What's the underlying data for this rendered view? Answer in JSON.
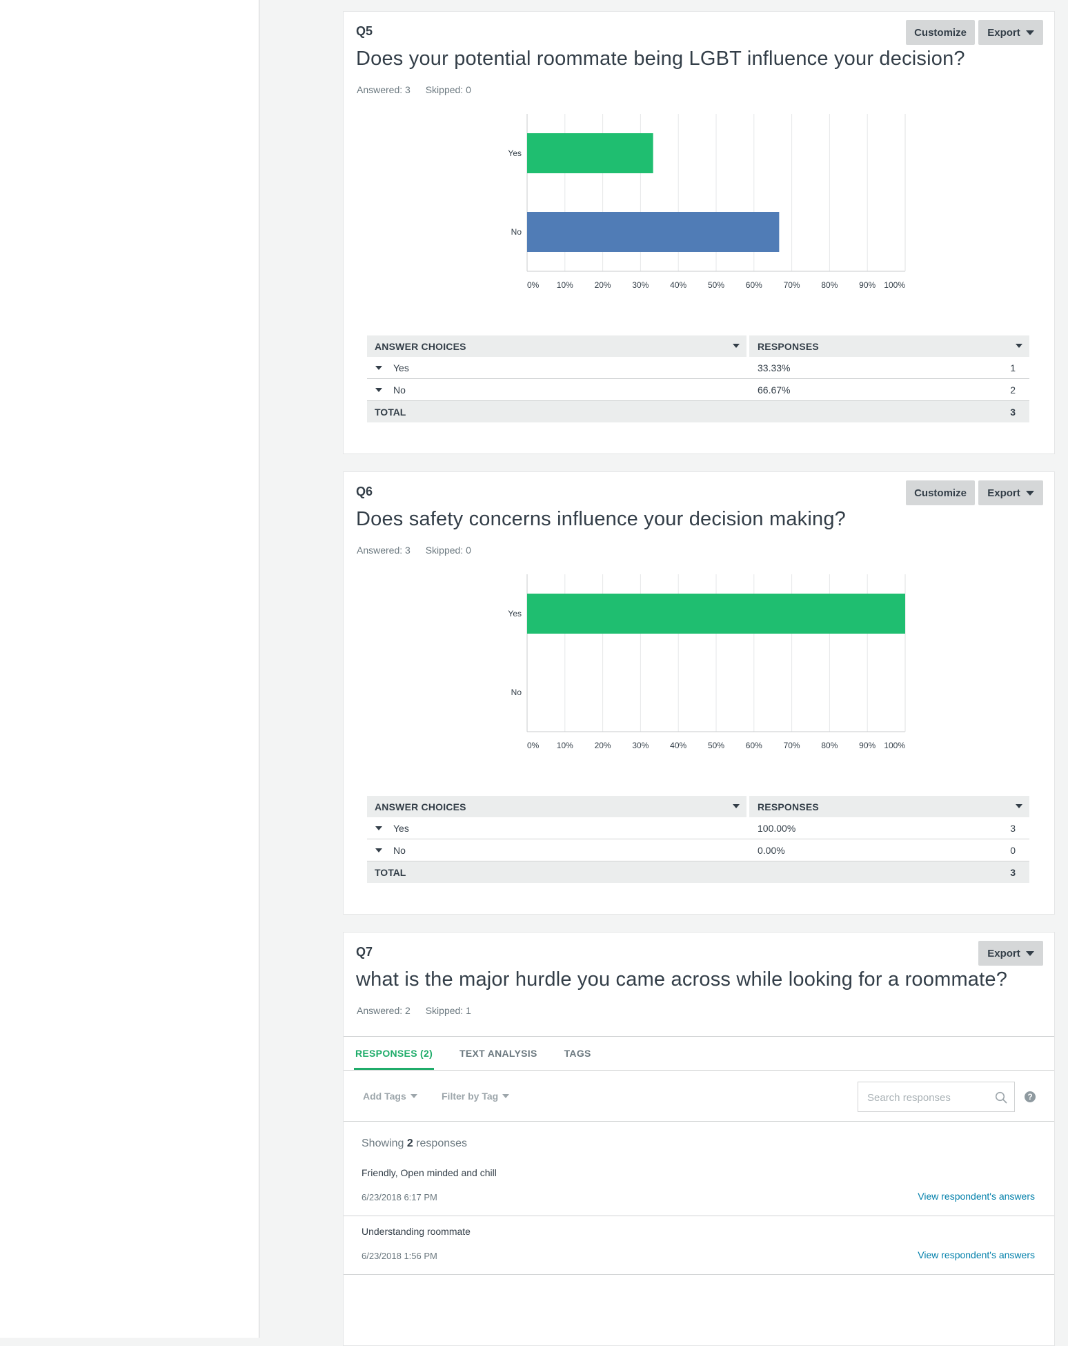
{
  "questions": [
    {
      "num": "Q5",
      "title": "Does your potential roommate being LGBT influence your decision?",
      "answered": "Answered: 3",
      "skipped": "Skipped: 0",
      "customize_label": "Customize",
      "export_label": "Export",
      "table": {
        "col1": "ANSWER CHOICES",
        "col2": "RESPONSES",
        "rows": [
          {
            "choice": "Yes",
            "percent": "33.33%",
            "count": "1"
          },
          {
            "choice": "No",
            "percent": "66.67%",
            "count": "2"
          }
        ],
        "total_label": "TOTAL",
        "total": "3"
      }
    },
    {
      "num": "Q6",
      "title": "Does safety concerns influence your decision making?",
      "answered": "Answered: 3",
      "skipped": "Skipped: 0",
      "customize_label": "Customize",
      "export_label": "Export",
      "table": {
        "col1": "ANSWER CHOICES",
        "col2": "RESPONSES",
        "rows": [
          {
            "choice": "Yes",
            "percent": "100.00%",
            "count": "3"
          },
          {
            "choice": "No",
            "percent": "0.00%",
            "count": "0"
          }
        ],
        "total_label": "TOTAL",
        "total": "3"
      }
    },
    {
      "num": "Q7",
      "title": "what is the major hurdle you came across while looking for a roommate?",
      "answered": "Answered: 2",
      "skipped": "Skipped: 1",
      "export_label": "Export",
      "tabs": [
        "RESPONSES (2)",
        "TEXT ANALYSIS",
        "TAGS"
      ],
      "add_tags": "Add Tags",
      "filter_by_tag": "Filter by Tag",
      "search_placeholder": "Search responses",
      "help": "?",
      "showing_prefix": "Showing",
      "showing_count": "2",
      "showing_suffix": "responses",
      "responses": [
        {
          "text": "Friendly, Open minded and chill",
          "date": "6/23/2018 6:17 PM",
          "link": "View respondent's answers"
        },
        {
          "text": "Understanding roommate",
          "date": "6/23/2018 1:56 PM",
          "link": "View respondent's answers"
        }
      ]
    }
  ],
  "chart_data": [
    {
      "type": "bar",
      "orientation": "horizontal",
      "categories": [
        "Yes",
        "No"
      ],
      "values": [
        33.33,
        66.67
      ],
      "colors": [
        "#1fbe70",
        "#507cb6"
      ],
      "xticks": [
        "0%",
        "10%",
        "20%",
        "30%",
        "40%",
        "50%",
        "60%",
        "70%",
        "80%",
        "90%",
        "100%"
      ],
      "xlim": [
        0,
        100
      ],
      "grid": true
    },
    {
      "type": "bar",
      "orientation": "horizontal",
      "categories": [
        "Yes",
        "No"
      ],
      "values": [
        100,
        0
      ],
      "colors": [
        "#1fbe70",
        "#507cb6"
      ],
      "xticks": [
        "0%",
        "10%",
        "20%",
        "30%",
        "40%",
        "50%",
        "60%",
        "70%",
        "80%",
        "90%",
        "100%"
      ],
      "xlim": [
        0,
        100
      ],
      "grid": true
    }
  ],
  "colors": {
    "accent_green": "#1fac6a",
    "link_blue": "#007faa"
  },
  "icons": {
    "search": "search-icon",
    "help": "help-icon",
    "caret": "caret-down-icon"
  }
}
